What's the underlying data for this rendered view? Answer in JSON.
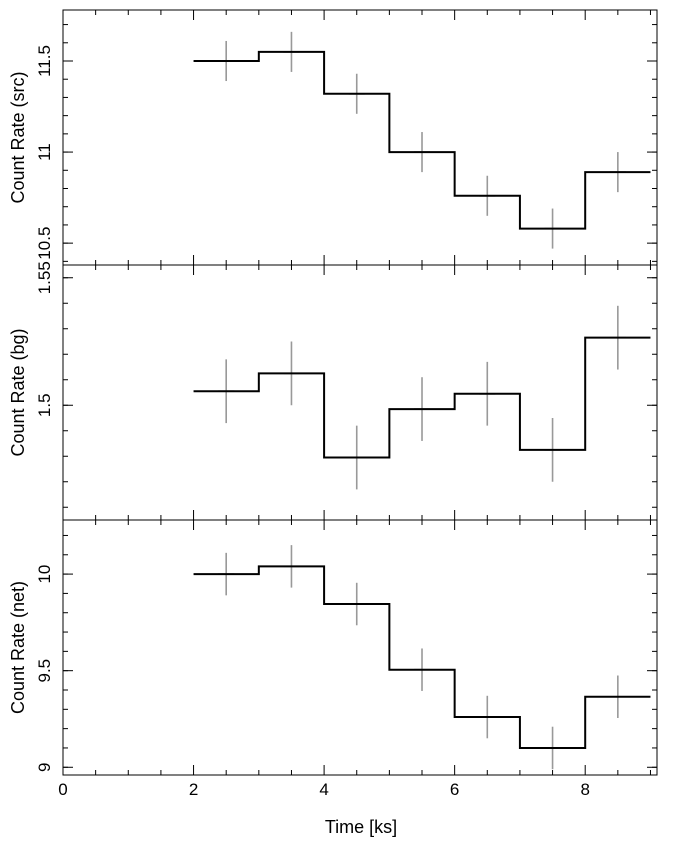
{
  "chart_data": {
    "type": "line",
    "xlabel": "Time [ks]",
    "xlim": [
      0,
      9.1
    ],
    "x_ticks": [
      0,
      2,
      4,
      6,
      8
    ],
    "panels": [
      {
        "ylabel": "Count Rate (src)",
        "ylim": [
          10.38,
          11.78
        ],
        "y_ticks": [
          10.5,
          11,
          11.5
        ],
        "series": [
          {
            "bins": [
              [
                2,
                3
              ],
              [
                3,
                4
              ],
              [
                4,
                5
              ],
              [
                5,
                6
              ],
              [
                6,
                7
              ],
              [
                7,
                8
              ],
              [
                8,
                9
              ]
            ],
            "x": [
              2.5,
              3.5,
              4.5,
              5.5,
              6.5,
              7.5,
              8.5
            ],
            "values": [
              11.5,
              11.55,
              11.32,
              11.0,
              10.76,
              10.58,
              10.89
            ],
            "errors": [
              0.11,
              0.11,
              0.11,
              0.11,
              0.11,
              0.11,
              0.11
            ]
          }
        ]
      },
      {
        "ylabel": "Count Rate (bg)",
        "ylim": [
          1.455,
          1.555
        ],
        "y_ticks": [
          1.5,
          1.55
        ],
        "series": [
          {
            "bins": [
              [
                2,
                3
              ],
              [
                3,
                4
              ],
              [
                4,
                5
              ],
              [
                5,
                6
              ],
              [
                6,
                7
              ],
              [
                7,
                8
              ],
              [
                8,
                9
              ]
            ],
            "x": [
              2.5,
              3.5,
              4.5,
              5.5,
              6.5,
              7.5,
              8.5
            ],
            "values": [
              1.5055,
              1.5125,
              1.4795,
              1.4985,
              1.5045,
              1.4825,
              1.5265
            ],
            "errors": [
              0.0125,
              0.0125,
              0.0125,
              0.0125,
              0.0125,
              0.0125,
              0.0125
            ]
          }
        ]
      },
      {
        "ylabel": "Count Rate (net)",
        "ylim": [
          8.96,
          10.28
        ],
        "y_ticks": [
          9,
          9.5,
          10
        ],
        "series": [
          {
            "bins": [
              [
                2,
                3
              ],
              [
                3,
                4
              ],
              [
                4,
                5
              ],
              [
                5,
                6
              ],
              [
                6,
                7
              ],
              [
                7,
                8
              ],
              [
                8,
                9
              ]
            ],
            "x": [
              2.5,
              3.5,
              4.5,
              5.5,
              6.5,
              7.5,
              8.5
            ],
            "values": [
              10.0,
              10.04,
              9.845,
              9.505,
              9.26,
              9.1,
              9.365
            ],
            "errors": [
              0.11,
              0.11,
              0.11,
              0.11,
              0.11,
              0.11,
              0.11
            ]
          }
        ]
      }
    ],
    "grid": false,
    "colors": {
      "line": "#000000",
      "error_bar": "#999999",
      "axis": "#000000"
    }
  }
}
